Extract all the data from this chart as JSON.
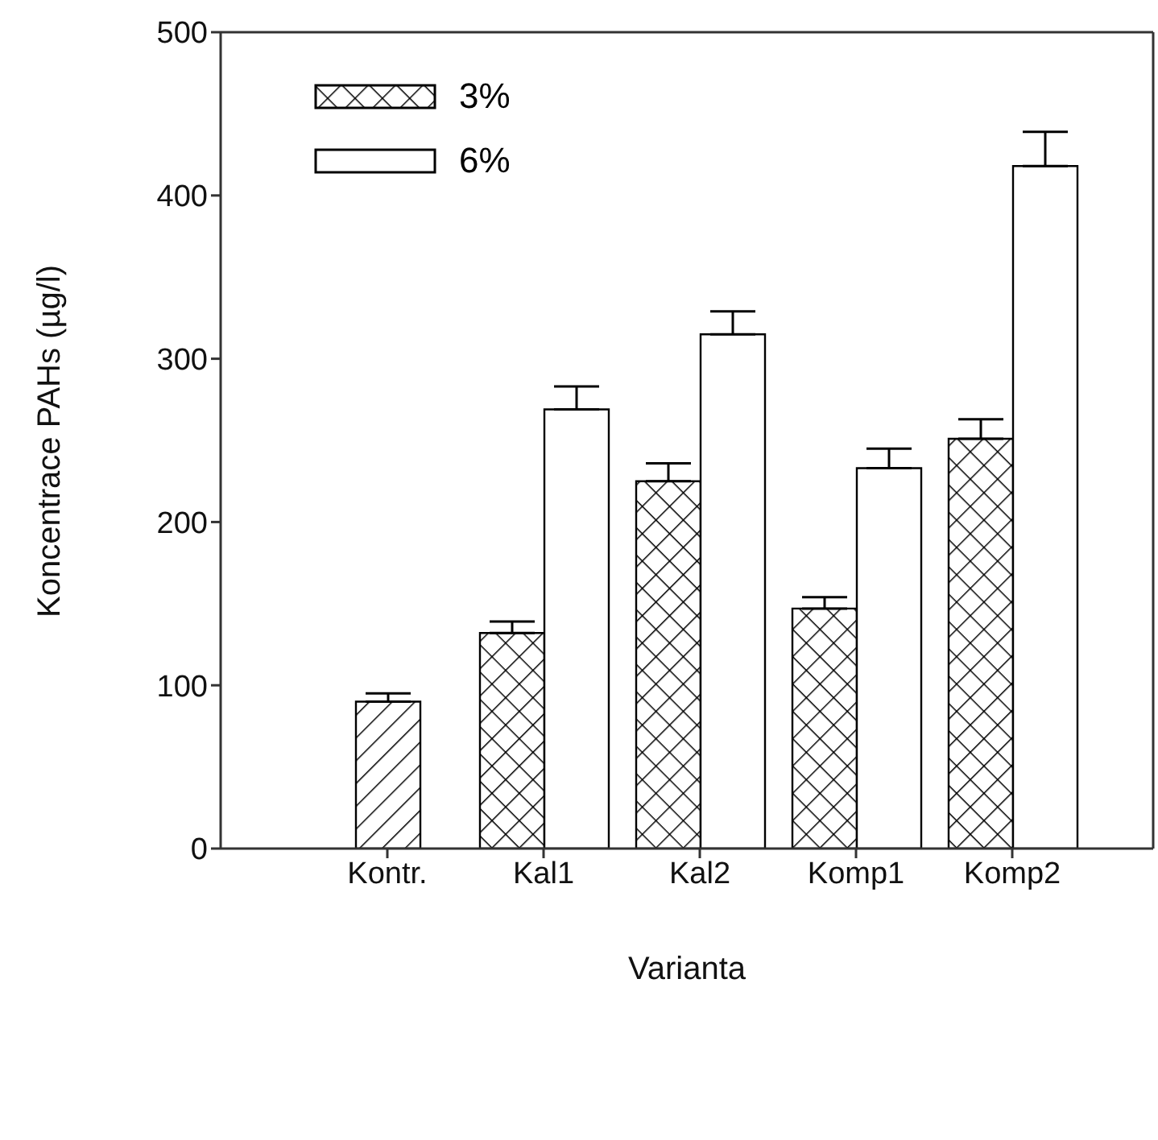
{
  "chart_data": {
    "type": "bar",
    "xlabel": "Varianta",
    "ylabel": "Koncentrace PAHs (µg/l)",
    "categories": [
      "Kontr.",
      "Kal1",
      "Kal2",
      "Komp1",
      "Komp2"
    ],
    "series": [
      {
        "color": "#000000",
        "values": [
          90,
          null,
          null,
          null,
          null
        ],
        "errors": [
          [
            90,
            95
          ],
          null,
          null,
          null,
          null
        ]
      },
      {
        "name": "3%",
        "color": "#000000",
        "values": [
          null,
          132,
          225,
          147,
          251
        ],
        "errors": [
          null,
          [
            132,
            139
          ],
          [
            225,
            236
          ],
          [
            147,
            154
          ],
          [
            251,
            263
          ]
        ]
      },
      {
        "name": "6%",
        "color": "#ffffff",
        "values": [
          null,
          269,
          315,
          233,
          418
        ],
        "errors": [
          null,
          [
            269,
            283
          ],
          [
            315,
            329
          ],
          [
            233,
            245
          ],
          [
            418,
            439
          ]
        ]
      }
    ],
    "ylim": [
      0,
      500
    ],
    "yticks": [
      0,
      100,
      200,
      300,
      400,
      500
    ],
    "legend": "top left"
  }
}
